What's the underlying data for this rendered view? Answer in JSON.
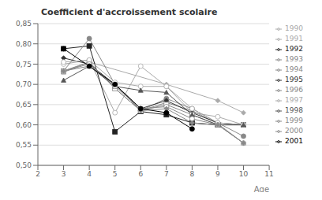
{
  "chart_data": {
    "type": "line",
    "title": "Coefficient d'accroissement scolaire",
    "xlabel": "Age",
    "xlim": [
      2,
      11
    ],
    "ylim": [
      0.5,
      0.85
    ],
    "xticks": [
      2,
      3,
      4,
      5,
      6,
      7,
      8,
      9,
      10,
      11
    ],
    "yticks": [
      {
        "value": 0.5,
        "label": "0,50"
      },
      {
        "value": 0.55,
        "label": "0,55"
      },
      {
        "value": 0.6,
        "label": "0,60"
      },
      {
        "value": 0.65,
        "label": "0,65"
      },
      {
        "value": 0.7,
        "label": "0,70"
      },
      {
        "value": 0.75,
        "label": "0,75"
      },
      {
        "value": 0.8,
        "label": "0,80"
      },
      {
        "value": 0.85,
        "label": "0,85"
      }
    ],
    "grid": "y",
    "legend": "right",
    "series": [
      {
        "name": "1990",
        "color": "#aaaaaa",
        "marker": "diamond",
        "x": [
          3,
          4,
          7,
          9,
          10
        ],
        "values": [
          0.733,
          0.755,
          0.7,
          0.66,
          0.63
        ]
      },
      {
        "name": "1991",
        "color": "#aaaaaa",
        "marker": "circle-open",
        "x": [
          3,
          4,
          5,
          6,
          7,
          8,
          9,
          10
        ],
        "values": [
          0.75,
          0.76,
          0.63,
          0.745,
          0.695,
          0.63,
          0.62,
          0.6
        ]
      },
      {
        "name": "1992",
        "color": "#222222",
        "marker": "square",
        "x": [
          3,
          4,
          5,
          6,
          7,
          8,
          9,
          10
        ],
        "values": [
          0.788,
          0.795,
          0.583,
          0.633,
          0.625,
          0.605,
          0.6,
          0.6
        ]
      },
      {
        "name": "1993",
        "color": "#888888",
        "marker": "circle",
        "x": [
          3,
          4,
          5,
          6,
          7,
          8,
          9,
          10
        ],
        "values": [
          0.733,
          0.813,
          0.7,
          0.635,
          0.665,
          0.64,
          0.605,
          0.572
        ]
      },
      {
        "name": "1994",
        "color": "#888888",
        "marker": "triangle-open",
        "x": [
          3,
          4,
          5,
          6,
          7,
          8,
          9,
          10
        ],
        "values": [
          0.73,
          0.755,
          0.69,
          0.635,
          0.655,
          0.635,
          0.603,
          0.555
        ]
      },
      {
        "name": "1995",
        "color": "#333333",
        "marker": "diamond",
        "x": [
          3,
          4,
          5,
          6,
          7,
          8,
          9,
          10
        ],
        "values": [
          0.765,
          0.75,
          0.7,
          0.64,
          0.66,
          0.63,
          0.605,
          0.6
        ]
      },
      {
        "name": "1996",
        "color": "#888888",
        "marker": "square-open",
        "x": [
          3,
          4,
          5,
          6,
          7,
          8,
          9,
          10
        ],
        "values": [
          0.733,
          0.755,
          0.69,
          0.635,
          0.65,
          0.625,
          0.6,
          0.6
        ]
      },
      {
        "name": "1997",
        "color": "#aaaaaa",
        "marker": "circle-open",
        "x": [
          3,
          4,
          5,
          6,
          7,
          8,
          9,
          10
        ],
        "values": [
          0.755,
          0.76,
          0.705,
          0.695,
          0.695,
          0.64,
          0.605,
          0.6
        ]
      },
      {
        "name": "1998",
        "color": "#555555",
        "marker": "triangle",
        "x": [
          3,
          4,
          5,
          6,
          7,
          8,
          9,
          10
        ],
        "values": [
          0.71,
          0.745,
          0.695,
          0.685,
          0.68,
          0.625,
          0.6,
          0.6
        ]
      },
      {
        "name": "1999",
        "color": "#888888",
        "marker": "circle-open",
        "x": [
          3,
          4,
          5,
          6,
          7,
          8,
          9,
          10
        ],
        "values": [
          0.733,
          0.75,
          0.695,
          0.64,
          0.645,
          0.615,
          0.6,
          0.555
        ]
      },
      {
        "name": "2000",
        "color": "#888888",
        "marker": "diamond",
        "x": [
          3,
          4,
          5,
          6,
          7,
          8,
          9,
          10
        ],
        "values": [
          0.733,
          0.745,
          0.7,
          0.635,
          0.64,
          0.605,
          0.6,
          0.555
        ]
      },
      {
        "name": "2001",
        "color": "#000000",
        "marker": "circle",
        "x": [
          3,
          4,
          5,
          6,
          7,
          8
        ],
        "values": [
          0.788,
          0.745,
          0.7,
          0.64,
          0.63,
          0.59
        ]
      }
    ]
  }
}
